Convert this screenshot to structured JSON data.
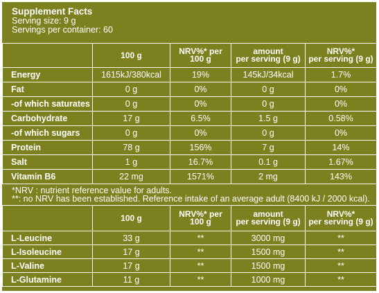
{
  "header": {
    "title": "Supplement Facts",
    "serving_size": "Serving size: 9 g",
    "servings_per_container": "Servings per container: 60"
  },
  "table1": {
    "columns": [
      "",
      "100 g",
      "NRV%* per\n100 g",
      "amount\nper serving (9 g)",
      "NRV%*\nper serving (9 g)"
    ],
    "rows": [
      [
        "Energy",
        "1615kJ/380kcal",
        "19%",
        "145kJ/34kcal",
        "1.7%"
      ],
      [
        "Fat",
        "0 g",
        "0%",
        "0 g",
        "0%"
      ],
      [
        "-of which saturates",
        "0 g",
        "0%",
        "0 g",
        "0%"
      ],
      [
        "Carbohydrate",
        "17 g",
        "6.5%",
        "1.5 g",
        "0.58%"
      ],
      [
        "-of which sugars",
        "0 g",
        "0%",
        "0 g",
        "0%"
      ],
      [
        "Protein",
        "78 g",
        "156%",
        "7 g",
        "14%"
      ],
      [
        "Salt",
        "1 g",
        "16.7%",
        "0.1 g",
        "1.67%"
      ],
      [
        "Vitamin B6",
        "22 mg",
        "1571%",
        "2 mg",
        "143%"
      ]
    ]
  },
  "notes": {
    "nrv": "*NRV : nutrient reference value for adults.",
    "no_nrv": "**: no NRV has been established. Reference intake of an average adult (8400 kJ / 2000 kcal)."
  },
  "table2": {
    "columns": [
      "",
      "100 g",
      "NRV%* per\n100 g",
      "amount\nper serving (9 g)",
      "NRV%*\nper serving (9 g)"
    ],
    "rows": [
      [
        "L-Leucine",
        "33 g",
        "**",
        "3000 mg",
        "**"
      ],
      [
        "L-Isoleucine",
        "17 g",
        "**",
        "1500 mg",
        "**"
      ],
      [
        "L-Valine",
        "17 g",
        "**",
        "1500 mg",
        "**"
      ],
      [
        "L-Glutamine",
        "11 g",
        "**",
        "1000 mg",
        "**"
      ]
    ]
  }
}
